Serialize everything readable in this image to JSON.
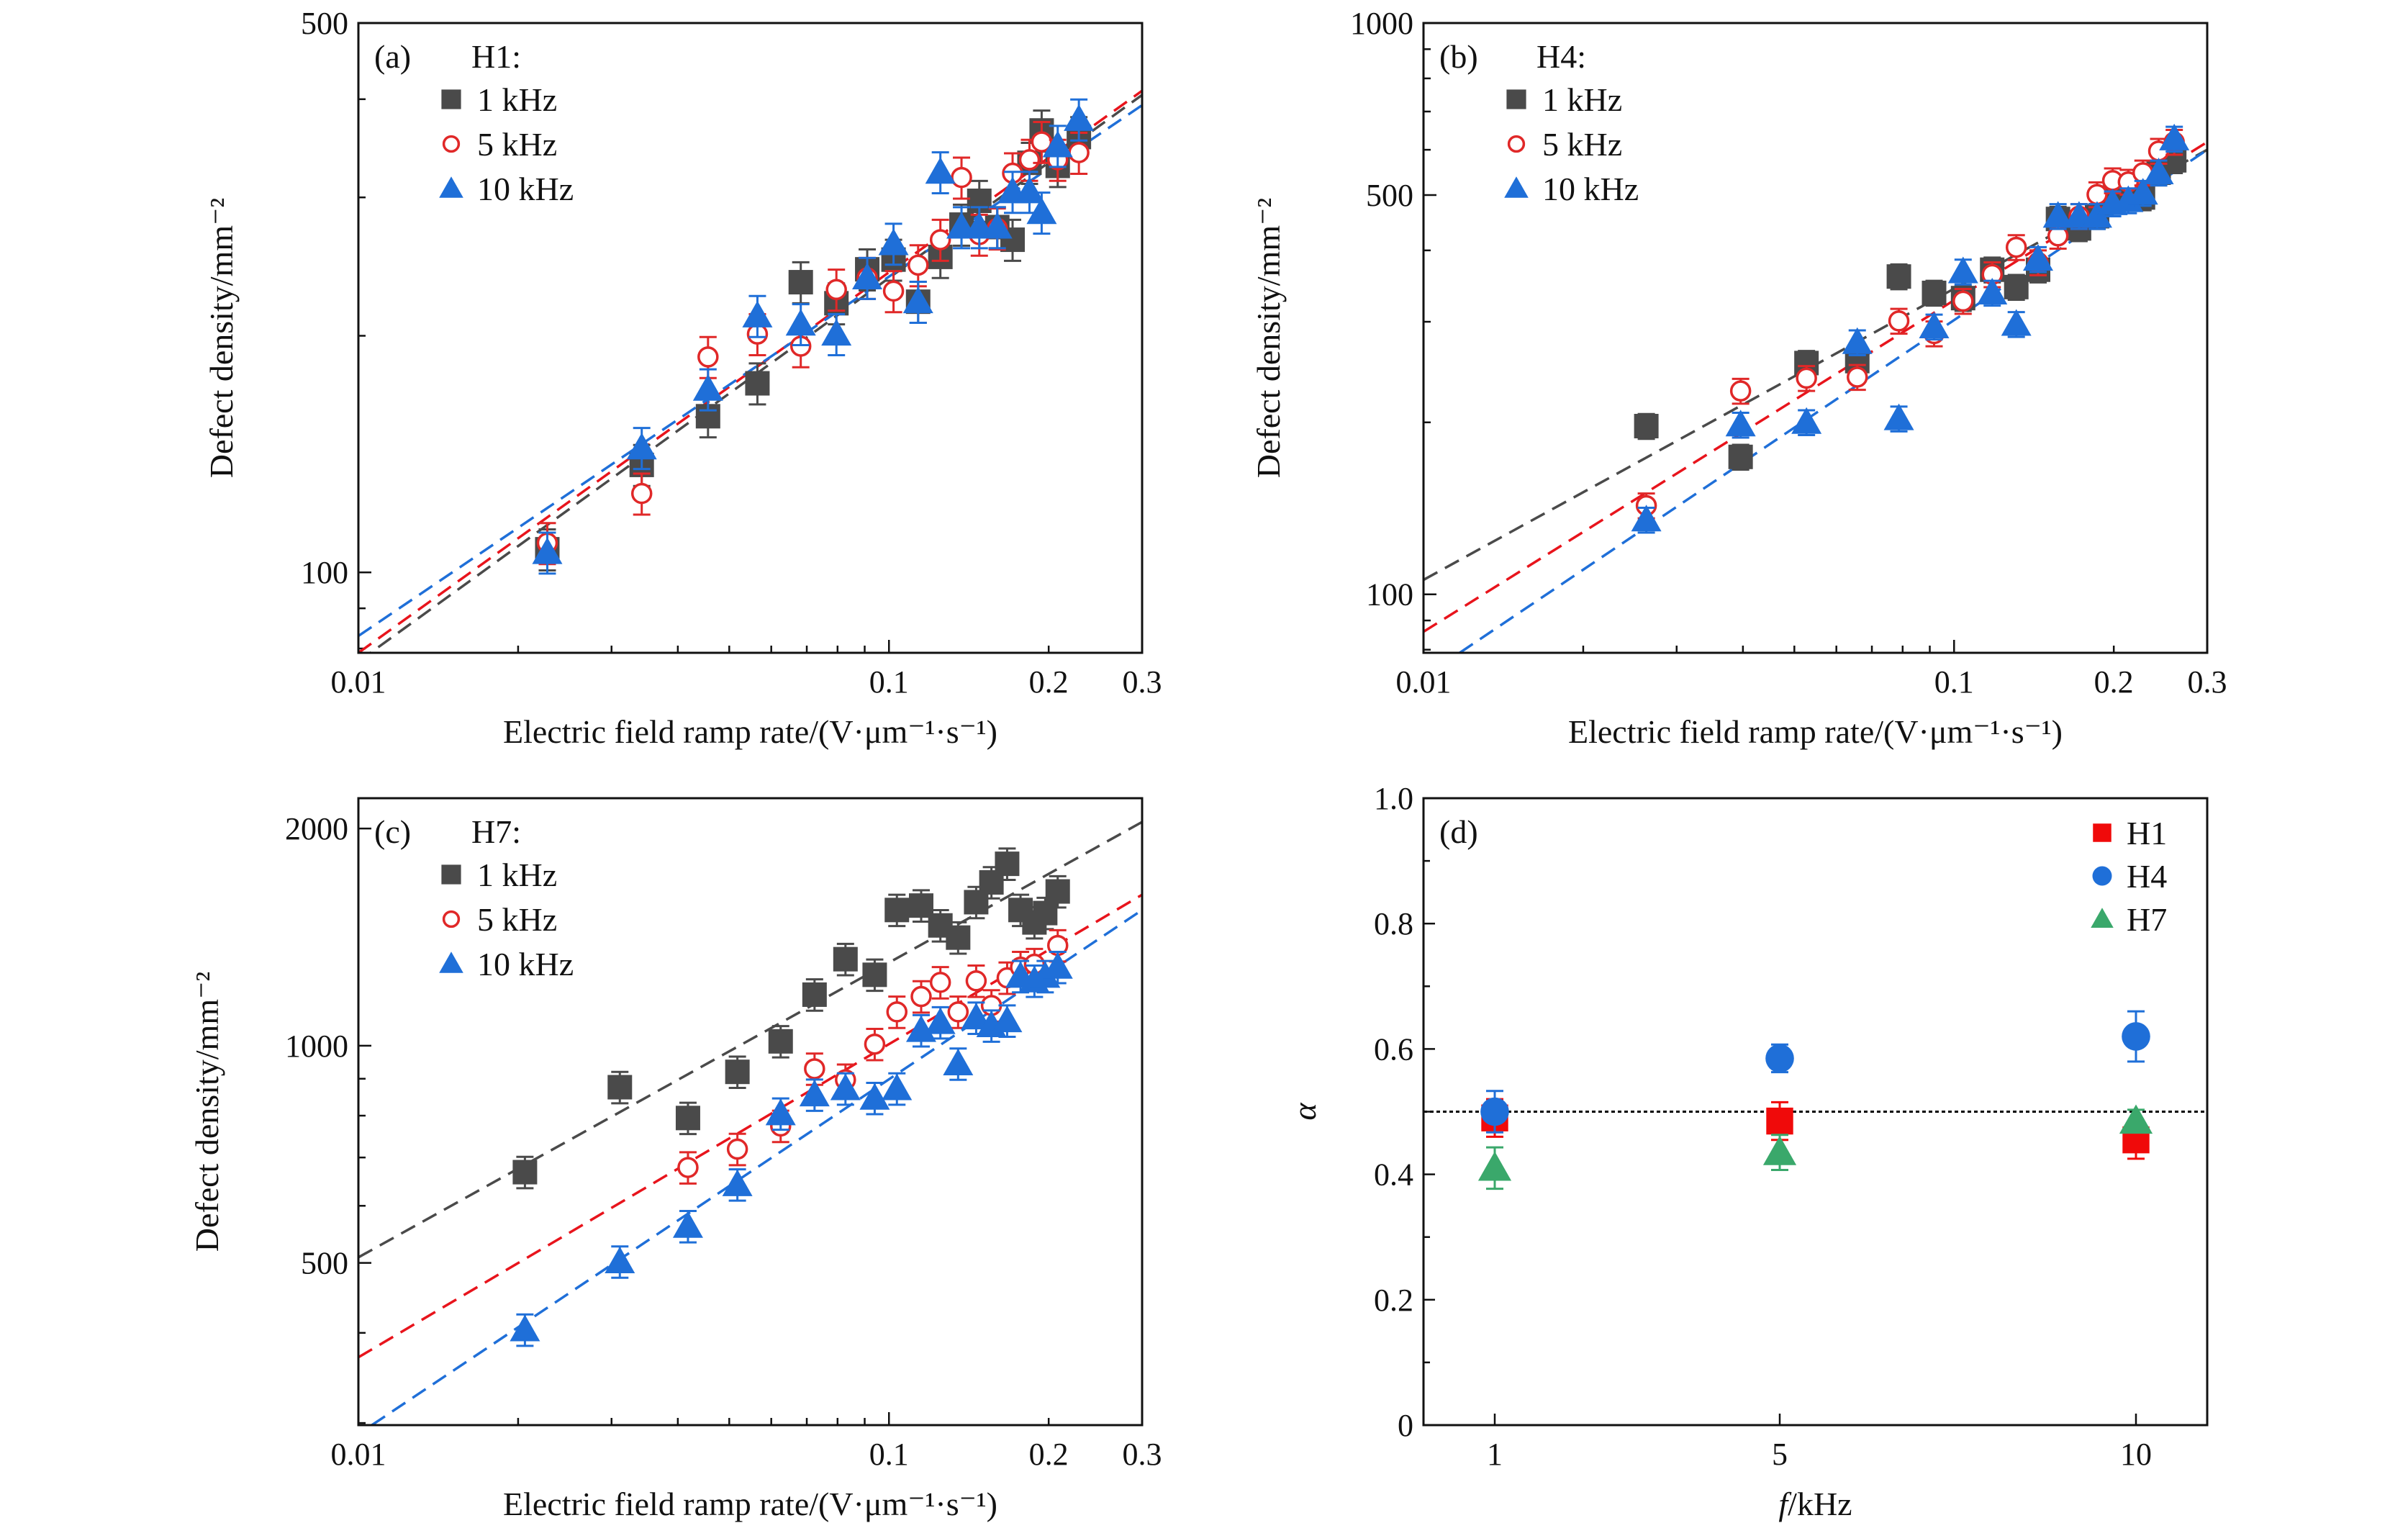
{
  "chart_data": [
    {
      "type": "scatter",
      "panel_label": "(a)",
      "legend_title": "H1:",
      "xlabel": "Electric field ramp rate/(V·μm⁻¹·s⁻¹)",
      "ylabel": "Defect density/mm⁻²",
      "xscale": "log",
      "yscale": "log",
      "xlim": [
        0.01,
        0.3
      ],
      "ylim": [
        79,
        500
      ],
      "xticks": [
        0.01,
        0.1,
        0.2,
        0.3
      ],
      "xtick_labels": [
        "0.01",
        "0.1",
        "0.2",
        "0.3"
      ],
      "yticks": [
        100,
        500
      ],
      "ytick_labels": [
        "100",
        "500"
      ],
      "legend_placement": "top-left",
      "grid": false,
      "rel_error": 0.06,
      "series": [
        {
          "name": "1 kHz",
          "marker": "square",
          "color": "#4a4a4a",
          "x": [
            0.0227,
            0.0342,
            0.0456,
            0.0565,
            0.0682,
            0.0796,
            0.091,
            0.102,
            0.1135,
            0.125,
            0.137,
            0.148,
            0.16,
            0.171,
            0.184,
            0.194,
            0.208,
            0.228
          ],
          "y": [
            107,
            137,
            158,
            174,
            234,
            220,
            243,
            250,
            221,
            252,
            277,
            297,
            275,
            265,
            332,
            365,
            329,
            358
          ]
        },
        {
          "name": "5 kHz",
          "marker": "open-circle",
          "color": "#e02828",
          "x": [
            0.0227,
            0.0342,
            0.0456,
            0.0565,
            0.0682,
            0.0796,
            0.091,
            0.102,
            0.1135,
            0.125,
            0.137,
            0.148,
            0.16,
            0.171,
            0.184,
            0.194,
            0.208,
            0.228
          ],
          "y": [
            109,
            126,
            188,
            201,
            194,
            229,
            237,
            228,
            246,
            265,
            318,
            269,
            274,
            322,
            335,
            353,
            335,
            342
          ]
        },
        {
          "name": "10 kHz",
          "marker": "triangle",
          "color": "#1f6fd8",
          "x": [
            0.0227,
            0.0342,
            0.0456,
            0.0565,
            0.0682,
            0.0796,
            0.091,
            0.102,
            0.1135,
            0.125,
            0.137,
            0.148,
            0.16,
            0.171,
            0.184,
            0.194,
            0.208,
            0.228
          ],
          "y": [
            106,
            144,
            171,
            212,
            207,
            201,
            237,
            262,
            221,
            323,
            275,
            275,
            275,
            305,
            305,
            287,
            349,
            377
          ]
        }
      ],
      "fits": [
        {
          "color": "#4a4a4a",
          "x": [
            0.01,
            0.3
          ],
          "y": [
            77,
            405
          ]
        },
        {
          "color": "#e8141c",
          "x": [
            0.01,
            0.3
          ],
          "y": [
            79,
            410
          ]
        },
        {
          "color": "#1f6fd8",
          "x": [
            0.01,
            0.3
          ],
          "y": [
            83,
            393
          ]
        }
      ]
    },
    {
      "type": "scatter",
      "panel_label": "(b)",
      "legend_title": "H4:",
      "xlabel": "Electric field ramp rate/(V·μm⁻¹·s⁻¹)",
      "ylabel": "Defect density/mm⁻²",
      "xscale": "log",
      "yscale": "log",
      "xlim": [
        0.01,
        0.3
      ],
      "ylim": [
        79,
        1000
      ],
      "xticks": [
        0.01,
        0.1,
        0.2,
        0.3
      ],
      "xtick_labels": [
        "0.01",
        "0.1",
        "0.2",
        "0.3"
      ],
      "yticks": [
        100,
        500,
        1000
      ],
      "ytick_labels": [
        "100",
        "500",
        "1000"
      ],
      "legend_placement": "top-left",
      "grid": false,
      "rel_error": 0.05,
      "series": [
        {
          "name": "1 kHz",
          "marker": "square",
          "color": "#4a4a4a",
          "x": [
            0.0263,
            0.0396,
            0.0527,
            0.0657,
            0.0787,
            0.0917,
            0.104,
            0.118,
            0.131,
            0.144,
            0.157,
            0.172,
            0.186,
            0.199,
            0.213,
            0.227,
            0.243,
            0.26
          ],
          "y": [
            197,
            174,
            254,
            256,
            360,
            337,
            330,
            370,
            345,
            370,
            454,
            437,
            459,
            495,
            495,
            495,
            547,
            575
          ]
        },
        {
          "name": "5 kHz",
          "marker": "open-circle",
          "color": "#e02828",
          "x": [
            0.0263,
            0.0396,
            0.0527,
            0.0657,
            0.0787,
            0.0917,
            0.104,
            0.118,
            0.131,
            0.144,
            0.157,
            0.172,
            0.186,
            0.199,
            0.213,
            0.227,
            0.243,
            0.26
          ],
          "y": [
            143,
            227,
            239,
            240,
            301,
            286,
            326,
            363,
            405,
            381,
            424,
            459,
            501,
            530,
            527,
            547,
            597,
            619
          ]
        },
        {
          "name": "10 kHz",
          "marker": "triangle",
          "color": "#1f6fd8",
          "x": [
            0.0263,
            0.0396,
            0.0527,
            0.0657,
            0.0787,
            0.0917,
            0.104,
            0.118,
            0.131,
            0.144,
            0.157,
            0.172,
            0.186,
            0.199,
            0.213,
            0.227,
            0.243,
            0.26
          ],
          "y": [
            135,
            198,
            200,
            276,
            203,
            294,
            367,
            337,
            297,
            386,
            459,
            459,
            459,
            483,
            489,
            504,
            547,
            627
          ]
        }
      ],
      "fits": [
        {
          "color": "#4a4a4a",
          "x": [
            0.01,
            0.3
          ],
          "y": [
            106,
            600
          ]
        },
        {
          "color": "#e8141c",
          "x": [
            0.01,
            0.3
          ],
          "y": [
            86,
            619
          ]
        },
        {
          "color": "#1f6fd8",
          "x": [
            0.0117,
            0.3
          ],
          "y": [
            79,
            600
          ]
        }
      ]
    },
    {
      "type": "scatter",
      "panel_label": "(c)",
      "legend_title": "H7:",
      "xlabel": "Electric field ramp rate/(V·μm⁻¹·s⁻¹)",
      "ylabel": "Defect density/mm⁻²",
      "xscale": "log",
      "yscale": "log",
      "xlim": [
        0.01,
        0.3
      ],
      "ylim": [
        298,
        2203
      ],
      "xticks": [
        0.01,
        0.1,
        0.2,
        0.3
      ],
      "xtick_labels": [
        "0.01",
        "0.1",
        "0.2",
        "0.3"
      ],
      "yticks": [
        500,
        1000,
        2000
      ],
      "ytick_labels": [
        "500",
        "1000",
        "2000"
      ],
      "legend_placement": "top-left",
      "grid": false,
      "rel_error": 0.05,
      "series": [
        {
          "name": "1 kHz",
          "marker": "square",
          "color": "#4a4a4a",
          "x": [
            0.0206,
            0.0311,
            0.0418,
            0.0518,
            0.0625,
            0.0724,
            0.0828,
            0.094,
            0.1035,
            0.115,
            0.125,
            0.135,
            0.146,
            0.156,
            0.167,
            0.177,
            0.188,
            0.197,
            0.208
          ],
          "y": [
            668,
            876,
            794,
            920,
            1014,
            1177,
            1318,
            1254,
            1542,
            1564,
            1468,
            1412,
            1581,
            1684,
            1787,
            1542,
            1482,
            1527,
            1636
          ]
        },
        {
          "name": "5 kHz",
          "marker": "open-circle",
          "color": "#e02828",
          "x": [
            0.0418,
            0.0518,
            0.0625,
            0.0724,
            0.0828,
            0.094,
            0.1035,
            0.115,
            0.125,
            0.135,
            0.146,
            0.156,
            0.167,
            0.177,
            0.188,
            0.208
          ],
          "y": [
            678,
            719,
            774,
            929,
            897,
            1005,
            1114,
            1170,
            1224,
            1114,
            1230,
            1137,
            1242,
            1285,
            1297,
            1377
          ]
        },
        {
          "name": "10 kHz",
          "marker": "triangle",
          "color": "#1f6fd8",
          "x": [
            0.0206,
            0.0311,
            0.0418,
            0.0518,
            0.0625,
            0.0724,
            0.0828,
            0.094,
            0.1035,
            0.115,
            0.125,
            0.135,
            0.146,
            0.156,
            0.167,
            0.177,
            0.188,
            0.197,
            0.208
          ],
          "y": [
            404,
            502,
            562,
            642,
            805,
            855,
            872,
            846,
            872,
            1050,
            1077,
            944,
            1093,
            1066,
            1083,
            1248,
            1230,
            1248,
            1285
          ]
        }
      ],
      "fits": [
        {
          "color": "#4a4a4a",
          "x": [
            0.01,
            0.3
          ],
          "y": [
            509,
            2042
          ]
        },
        {
          "color": "#e8141c",
          "x": [
            0.01,
            0.3
          ],
          "y": [
            370,
            1619
          ]
        },
        {
          "color": "#1f6fd8",
          "x": [
            0.0106,
            0.3
          ],
          "y": [
            298,
            1542
          ]
        }
      ]
    },
    {
      "type": "scatter",
      "panel_label": "(d)",
      "xlabel_italic": "f",
      "xlabel": "/kHz",
      "ylabel": "α",
      "xscale": "linear",
      "yscale": "linear",
      "xlim": [
        0,
        11
      ],
      "ylim": [
        0,
        1
      ],
      "xticks": [
        1,
        5,
        10
      ],
      "xtick_labels": [
        "1",
        "5",
        "10"
      ],
      "yticks": [
        0,
        0.2,
        0.4,
        0.6,
        0.8,
        1.0
      ],
      "ytick_labels": [
        "0",
        "0.2",
        "0.4",
        "0.6",
        "0.8",
        "1.0"
      ],
      "legend_placement": "top-right",
      "grid": false,
      "reference_line": {
        "y": 0.5,
        "style": "dotted",
        "color": "#000000"
      },
      "series": [
        {
          "name": "H1",
          "marker": "square",
          "color": "#f00a0a",
          "x": [
            1,
            5,
            10
          ],
          "y": [
            0.49,
            0.485,
            0.455
          ],
          "yerr": [
            0.03,
            0.03,
            0.03
          ]
        },
        {
          "name": "H4",
          "marker": "circle",
          "color": "#1f6fd8",
          "x": [
            1,
            5,
            10
          ],
          "y": [
            0.5,
            0.585,
            0.62
          ],
          "yerr": [
            0.033,
            0.022,
            0.04
          ]
        },
        {
          "name": "H7",
          "marker": "triangle",
          "color": "#3aa86b",
          "x": [
            1,
            5,
            10
          ],
          "y": [
            0.41,
            0.435,
            0.485
          ],
          "yerr": [
            0.033,
            0.028,
            0.018
          ]
        }
      ]
    }
  ]
}
